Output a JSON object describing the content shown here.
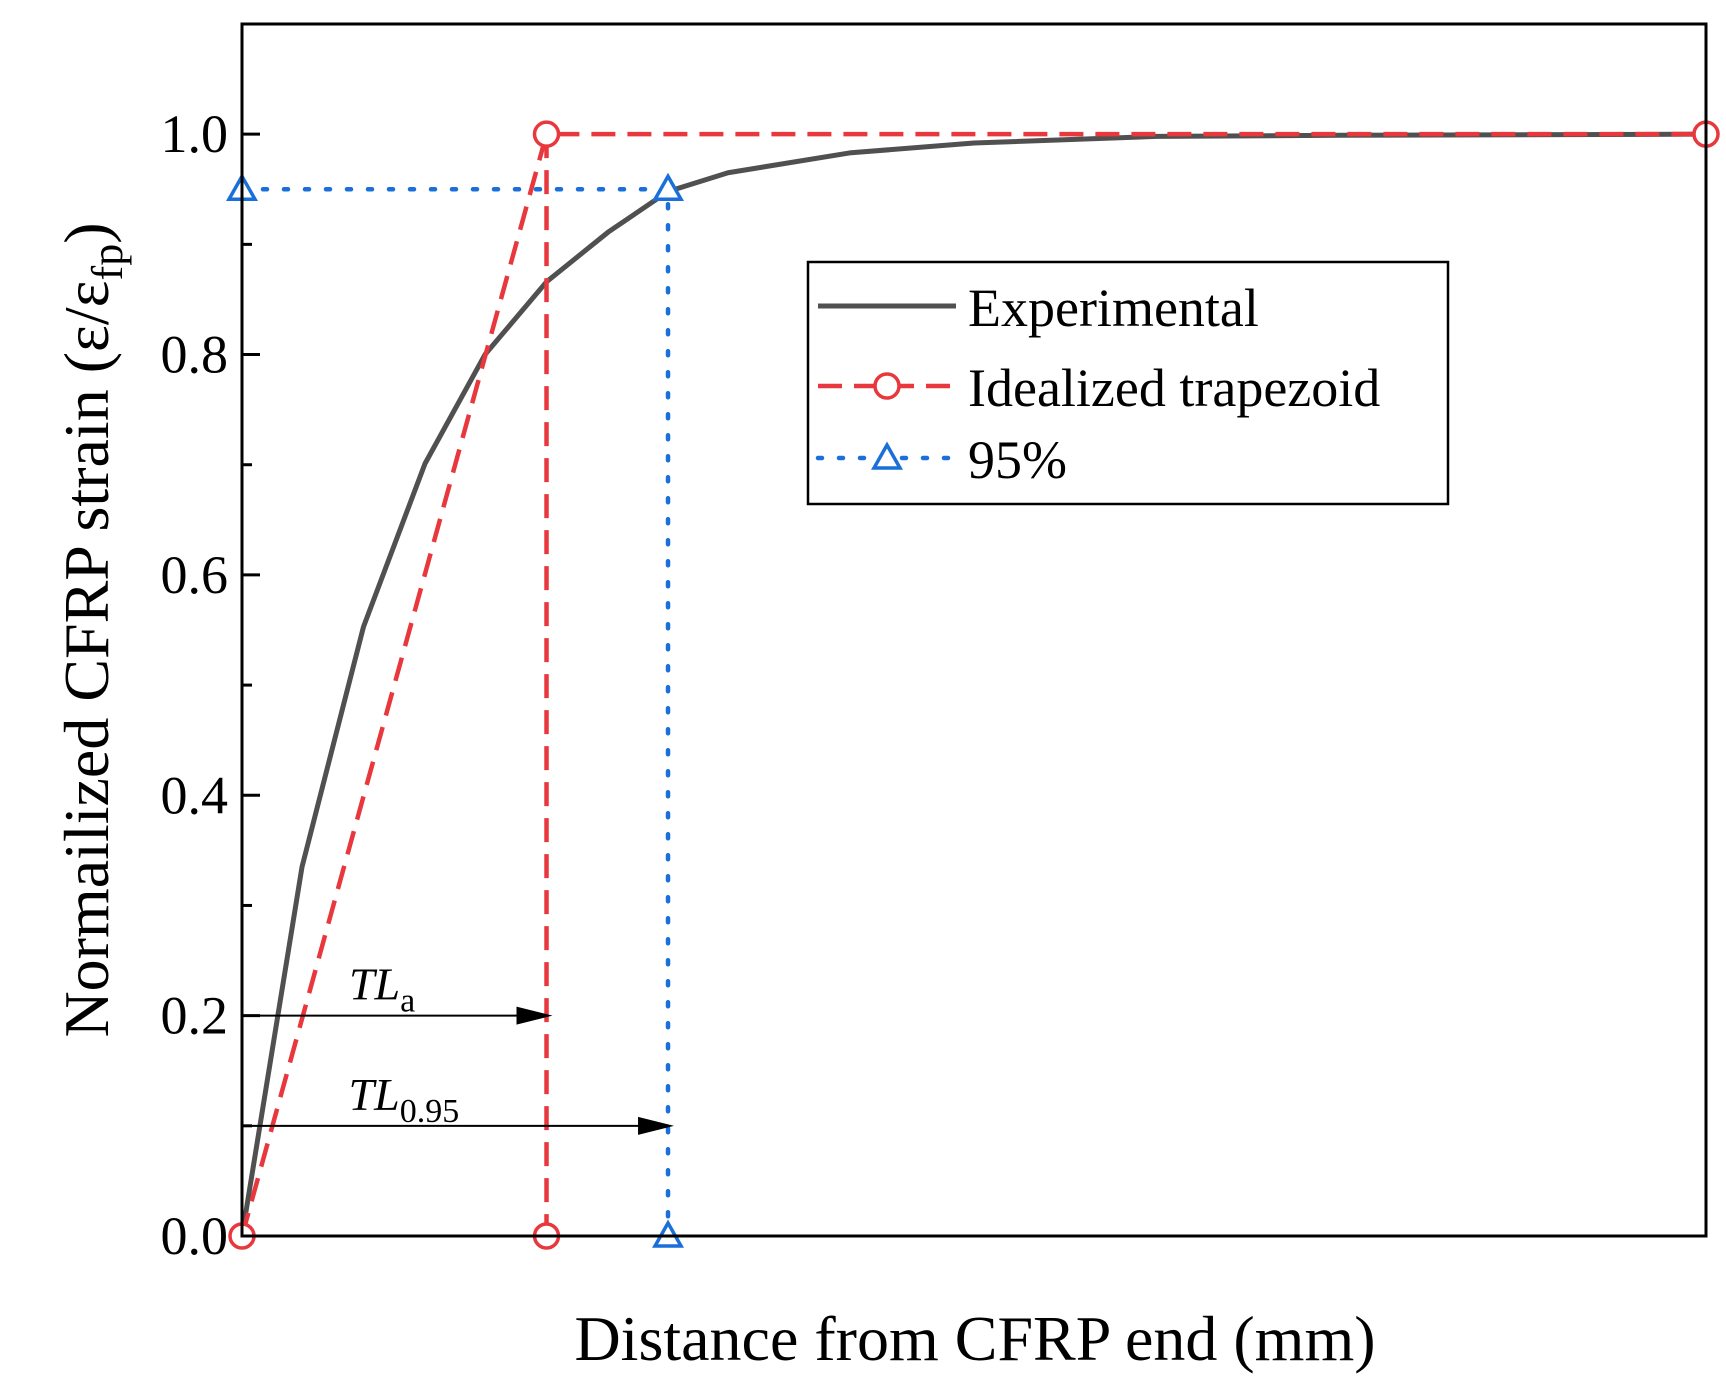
{
  "chart_data": {
    "type": "line",
    "title": "",
    "xlabel": "Distance from CFRP end (mm)",
    "ylabel": {
      "main": "Normailized CFRP strain (ε/ε",
      "sub": "fp",
      "close": ")"
    },
    "xlim": [
      0,
      100
    ],
    "ylim": [
      0,
      1.1
    ],
    "x_ticks_labeled": false,
    "y_ticks": [
      "0.0",
      "0.2",
      "0.4",
      "0.6",
      "0.8",
      "1.0"
    ],
    "y_minor_step": 0.1,
    "series": [
      {
        "name": "Experimental",
        "style": "solid",
        "color": "#505050",
        "marker": "none",
        "x": [
          0,
          4.1,
          8.3,
          12.5,
          16.6,
          20.8,
          25.0,
          29.1,
          33.2,
          41.5,
          50.0,
          62.5,
          75.0,
          100.0
        ],
        "y": [
          0.0,
          0.335,
          0.553,
          0.701,
          0.8,
          0.866,
          0.911,
          0.948,
          0.965,
          0.983,
          0.992,
          0.998,
          0.999,
          1.0
        ]
      },
      {
        "name": "Idealized trapezoid",
        "style": "dashed",
        "color": "#e8383d",
        "marker": "circle",
        "x": [
          0,
          20.8,
          100,
          20.8
        ],
        "y": [
          0,
          1.0,
          1.0,
          0.0
        ],
        "path": [
          [
            0,
            0
          ],
          [
            20.8,
            1.0
          ],
          [
            100,
            1.0
          ]
        ],
        "drop": [
          [
            20.8,
            1.0
          ],
          [
            20.8,
            0.0
          ]
        ]
      },
      {
        "name": "95%",
        "style": "dotted",
        "color": "#1a6fd8",
        "marker": "triangle",
        "x": [
          0,
          29.1,
          29.1
        ],
        "y": [
          0.95,
          0.95,
          0.0
        ],
        "path": [
          [
            0,
            0.95
          ],
          [
            29.1,
            0.95
          ],
          [
            29.1,
            0.0
          ]
        ]
      }
    ],
    "annotations": [
      {
        "text": "TL",
        "sub": "a",
        "arrow_from": [
          0,
          0.2
        ],
        "arrow_to": [
          20.8,
          0.2
        ]
      },
      {
        "text": "TL",
        "sub": "0.95",
        "arrow_from": [
          0,
          0.1
        ],
        "arrow_to": [
          29.1,
          0.1
        ]
      }
    ],
    "legend": {
      "placement": "upper-right",
      "entries": [
        "Experimental",
        "Idealized trapezoid",
        "95%"
      ]
    }
  }
}
